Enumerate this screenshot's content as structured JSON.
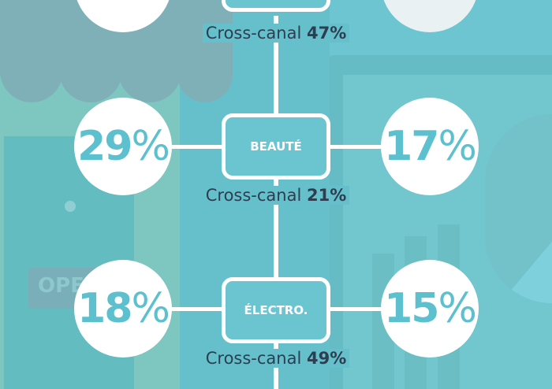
{
  "rows": [
    {
      "category": "",
      "left": "",
      "right": "",
      "cross_label": "Cross-canal",
      "cross_value": "47%"
    },
    {
      "category": "BEAUTÉ",
      "left": "29",
      "right": "17",
      "cross_label": "Cross-canal",
      "cross_value": "21%"
    },
    {
      "category": "ÉLECTRO.",
      "left": "18",
      "right": "15",
      "cross_label": "Cross-canal",
      "cross_value": "49%"
    }
  ],
  "percent_sign": "%",
  "sign_text": "OPEN",
  "colors": {
    "accent": "#5dc0cf",
    "dark_text": "#2c3e50",
    "background": "#66c0cc"
  }
}
